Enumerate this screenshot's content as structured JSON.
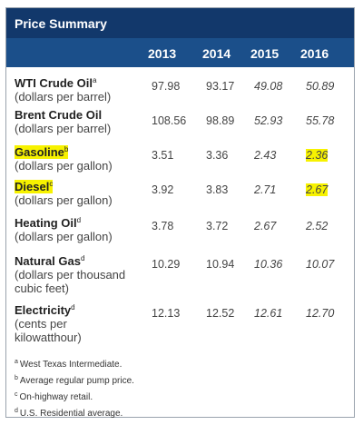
{
  "title": "Price Summary",
  "years": [
    "2013",
    "2014",
    "2015",
    "2016"
  ],
  "rows": [
    {
      "name": "WTI Crude Oil",
      "sup": "a",
      "unit": [
        "(dollars per barrel)"
      ],
      "values": [
        "97.98",
        "93.17",
        "49.08",
        "50.89"
      ],
      "italic": [
        false,
        false,
        true,
        true
      ],
      "highlight_name": false,
      "highlight_last": false
    },
    {
      "name": "Brent Crude Oil",
      "sup": "",
      "unit": [
        "(dollars per barrel)"
      ],
      "values": [
        "108.56",
        "98.89",
        "52.93",
        "55.78"
      ],
      "italic": [
        false,
        false,
        true,
        true
      ],
      "highlight_name": false,
      "highlight_last": false
    },
    {
      "name": "Gasoline",
      "sup": "b",
      "unit": [
        "(dollars per gallon)"
      ],
      "values": [
        "3.51",
        "3.36",
        "2.43",
        "2.36"
      ],
      "italic": [
        false,
        false,
        true,
        true
      ],
      "highlight_name": true,
      "highlight_last": true
    },
    {
      "name": "Diesel",
      "sup": "c",
      "unit": [
        "(dollars per gallon)"
      ],
      "values": [
        "3.92",
        "3.83",
        "2.71",
        "2.67"
      ],
      "italic": [
        false,
        false,
        true,
        true
      ],
      "highlight_name": true,
      "highlight_last": true
    },
    {
      "name": "Heating Oil",
      "sup": "d",
      "unit": [
        "(dollars per gallon)"
      ],
      "values": [
        "3.78",
        "3.72",
        "2.67",
        "2.52"
      ],
      "italic": [
        false,
        false,
        true,
        true
      ],
      "highlight_name": false,
      "highlight_last": false
    },
    {
      "name": "Natural Gas",
      "sup": "d",
      "unit": [
        "(dollars per thousand",
        "cubic feet)"
      ],
      "values": [
        "10.29",
        "10.94",
        "10.36",
        "10.07"
      ],
      "italic": [
        false,
        false,
        true,
        true
      ],
      "highlight_name": false,
      "highlight_last": false
    },
    {
      "name": "Electricity",
      "sup": "d",
      "unit": [
        "(cents per",
        "kilowatthour)"
      ],
      "values": [
        "12.13",
        "12.52",
        "12.61",
        "12.70"
      ],
      "italic": [
        false,
        false,
        true,
        true
      ],
      "highlight_name": false,
      "highlight_last": false
    }
  ],
  "footnotes": [
    {
      "mark": "a",
      "text": "West Texas Intermediate."
    },
    {
      "mark": "b",
      "text": "Average regular pump price."
    },
    {
      "mark": "c",
      "text": "On-highway retail."
    },
    {
      "mark": "d",
      "text": "U.S. Residential average."
    }
  ],
  "colors": {
    "title_bg": "#12386b",
    "header_bg": "#1b4f8a",
    "highlight": "#f7f200"
  }
}
